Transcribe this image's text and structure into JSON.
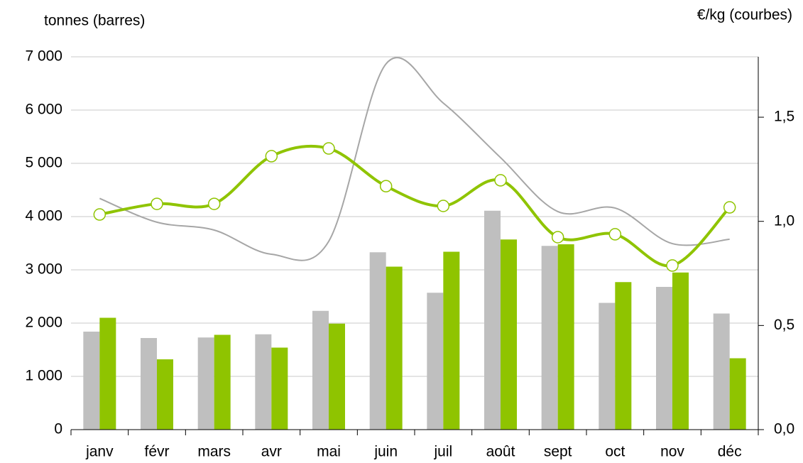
{
  "chart_data": {
    "type": "bar-line",
    "y_label": "tonnes (barres)",
    "y2_label": "€/kg (courbes)",
    "categories": [
      "janv",
      "févr",
      "mars",
      "avr",
      "mai",
      "juin",
      "juil",
      "août",
      "sept",
      "oct",
      "nov",
      "déc"
    ],
    "series": [
      {
        "type": "bar",
        "color": "#bfbfbf",
        "values": [
          1840,
          1720,
          1730,
          1790,
          2230,
          3330,
          2570,
          4110,
          3450,
          2380,
          2680,
          2180
        ]
      },
      {
        "type": "bar",
        "color": "#8fc400",
        "values": [
          2100,
          1320,
          1780,
          1540,
          1990,
          3060,
          3340,
          3570,
          3480,
          2770,
          2950,
          1340
        ]
      },
      {
        "type": "line",
        "axis": "y2",
        "color": "#a6a6a6",
        "markers": false,
        "values": [
          1.11,
          0.996,
          0.958,
          0.842,
          0.904,
          1.756,
          1.568,
          1.306,
          1.047,
          1.064,
          0.893,
          0.914
        ]
      },
      {
        "type": "line",
        "axis": "y2",
        "color": "#8fc400",
        "markers": true,
        "values": [
          1.033,
          1.084,
          1.084,
          1.313,
          1.35,
          1.169,
          1.074,
          1.197,
          0.924,
          0.938,
          0.788,
          1.067
        ]
      }
    ],
    "ylim": [
      0,
      7000
    ],
    "yticks": [
      0,
      {
        "value": 1000,
        "label": "1 000"
      },
      {
        "value": 2000,
        "label": "2 000"
      },
      {
        "value": 3000,
        "label": "3 000"
      },
      {
        "value": 4000,
        "label": "4 000"
      },
      {
        "value": 5000,
        "label": "5 000"
      },
      {
        "value": 6000,
        "label": "6 000"
      },
      {
        "value": 7000,
        "label": "7 000"
      }
    ],
    "y2lim": [
      0,
      1.79
    ],
    "y2ticks": [
      {
        "value": 0,
        "label": "0,0"
      },
      {
        "value": 0.5,
        "label": "0,5"
      },
      {
        "value": 1,
        "label": "1,0"
      },
      {
        "value": 1.5,
        "label": "1,5"
      }
    ],
    "grid": true
  }
}
